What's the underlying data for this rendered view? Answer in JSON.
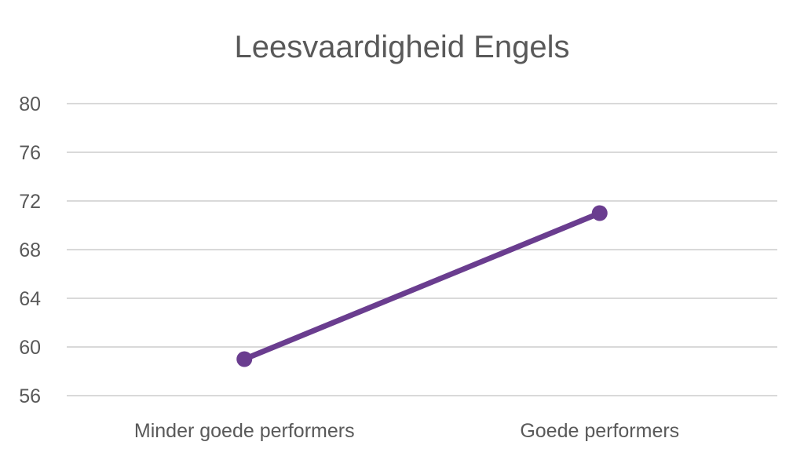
{
  "chart_data": {
    "type": "line",
    "title": "Leesvaardigheid Engels",
    "xlabel": "",
    "ylabel": "",
    "categories": [
      "Minder goede performers",
      "Goede performers"
    ],
    "series": [
      {
        "values": [
          59,
          71
        ],
        "color": "#6a3d8f"
      }
    ],
    "ylim": [
      56,
      80
    ],
    "yticks": [
      56,
      60,
      64,
      68,
      72,
      76,
      80
    ],
    "grid": true,
    "legend": "none"
  }
}
